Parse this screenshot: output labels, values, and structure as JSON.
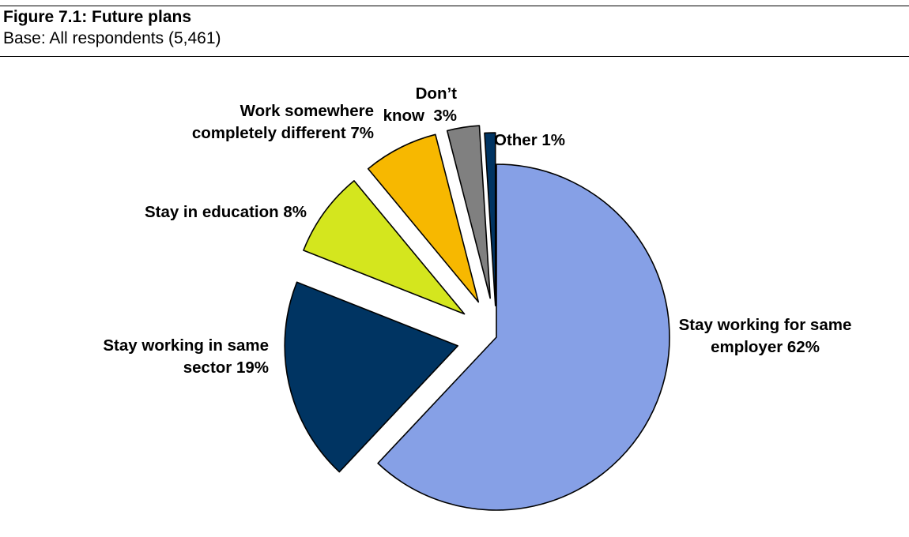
{
  "figure": {
    "title": "Figure 7.1: Future plans",
    "base": "Base: All respondents (5,461)"
  },
  "chart_data": {
    "type": "pie",
    "title": "Figure 7.1: Future plans",
    "subtitle": "Base: All respondents (5,461)",
    "start_angle_deg": 0,
    "direction": "clockwise",
    "exploded": true,
    "slices": [
      {
        "label": "Stay working for same employer",
        "value": 62,
        "value_label": "62%",
        "color": "#86A0E6",
        "label_lines": [
          "Stay working for same",
          "employer 62%"
        ]
      },
      {
        "label": "Stay working in same sector",
        "value": 19,
        "value_label": "19%",
        "color": "#003462",
        "label_lines": [
          "Stay working in same",
          "sector 19%"
        ]
      },
      {
        "label": "Stay in education",
        "value": 8,
        "value_label": "8%",
        "color": "#D4E61E",
        "label_lines": [
          "Stay in education 8%"
        ]
      },
      {
        "label": "Work somewhere completely different",
        "value": 7,
        "value_label": "7%",
        "color": "#F7B800",
        "label_lines": [
          "Work somewhere",
          "completely different 7%"
        ]
      },
      {
        "label": "Don’t know",
        "value": 3,
        "value_label": "3%",
        "color": "#808080",
        "label_lines": [
          "Don’t",
          "know  3%"
        ]
      },
      {
        "label": "Other",
        "value": 1,
        "value_label": "1%",
        "color": "#003462",
        "label_lines": [
          "Other 1%"
        ]
      }
    ]
  }
}
